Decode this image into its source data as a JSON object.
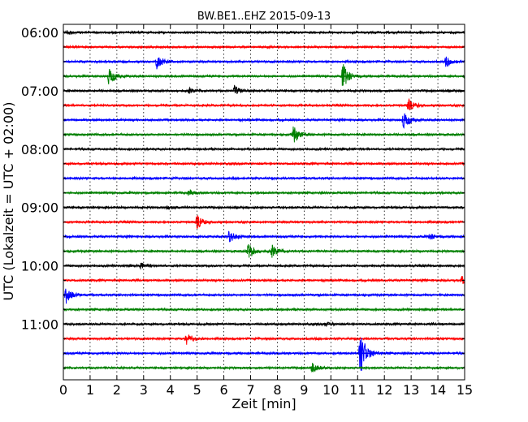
{
  "chart_data": {
    "type": "line",
    "title": "BW.BE1..EHZ 2015-09-13",
    "xlabel": "Zeit  [min]",
    "ylabel": "UTC (Lokalzeit = UTC + 02:00)",
    "xlim": [
      0,
      15
    ],
    "x_ticks": [
      "0",
      "1",
      "2",
      "3",
      "4",
      "5",
      "6",
      "7",
      "8",
      "9",
      "10",
      "11",
      "12",
      "13",
      "14",
      "15"
    ],
    "y_tick_labels": [
      "06:00",
      "07:00",
      "08:00",
      "09:00",
      "10:00",
      "11:00"
    ],
    "trace_interval_min": 15,
    "start_time": "06:00",
    "end_time": "11:45",
    "grid": "vertical dotted lines at each minute",
    "trace_colors": [
      "#000000",
      "#ff0000",
      "#0000ff",
      "#008000"
    ],
    "series": [
      {
        "start": "06:00",
        "color": "black",
        "events": [
          {
            "t": 0.15,
            "amp": 0.2
          }
        ]
      },
      {
        "start": "06:15",
        "color": "red",
        "events": []
      },
      {
        "start": "06:30",
        "color": "blue",
        "events": [
          {
            "t": 3.5,
            "amp": 0.75
          },
          {
            "t": 14.3,
            "amp": 0.5
          }
        ]
      },
      {
        "start": "06:45",
        "color": "green",
        "events": [
          {
            "t": 1.7,
            "amp": 0.9
          },
          {
            "t": 10.45,
            "amp": 1.3
          }
        ]
      },
      {
        "start": "07:00",
        "color": "black",
        "events": [
          {
            "t": 4.7,
            "amp": 0.25
          },
          {
            "t": 6.4,
            "amp": 0.5
          }
        ]
      },
      {
        "start": "07:15",
        "color": "red",
        "events": [
          {
            "t": 12.9,
            "amp": 0.6
          }
        ]
      },
      {
        "start": "07:30",
        "color": "blue",
        "events": [
          {
            "t": 12.7,
            "amp": 1.0
          }
        ]
      },
      {
        "start": "07:45",
        "color": "green",
        "events": [
          {
            "t": 8.6,
            "amp": 0.9
          }
        ]
      },
      {
        "start": "08:00",
        "color": "black",
        "events": []
      },
      {
        "start": "08:15",
        "color": "red",
        "events": []
      },
      {
        "start": "08:30",
        "color": "blue",
        "events": []
      },
      {
        "start": "08:45",
        "color": "green",
        "events": [
          {
            "t": 4.7,
            "amp": 0.25
          }
        ]
      },
      {
        "start": "09:00",
        "color": "black",
        "events": [
          {
            "t": 3.9,
            "amp": 0.2
          }
        ]
      },
      {
        "start": "09:15",
        "color": "red",
        "events": [
          {
            "t": 5.0,
            "amp": 0.7
          }
        ]
      },
      {
        "start": "09:30",
        "color": "blue",
        "events": [
          {
            "t": 6.2,
            "amp": 0.7
          },
          {
            "t": 13.7,
            "amp": 0.3
          }
        ]
      },
      {
        "start": "09:45",
        "color": "green",
        "events": [
          {
            "t": 6.9,
            "amp": 1.0
          },
          {
            "t": 7.8,
            "amp": 0.6
          }
        ]
      },
      {
        "start": "10:00",
        "color": "black",
        "events": [
          {
            "t": 2.9,
            "amp": 0.25
          }
        ]
      },
      {
        "start": "10:15",
        "color": "red",
        "events": [
          {
            "t": 14.9,
            "amp": 0.4
          }
        ]
      },
      {
        "start": "10:30",
        "color": "blue",
        "events": [
          {
            "t": 0.1,
            "amp": 0.85
          }
        ]
      },
      {
        "start": "10:45",
        "color": "green",
        "events": []
      },
      {
        "start": "11:00",
        "color": "black",
        "events": [
          {
            "t": 9.8,
            "amp": 0.2
          }
        ]
      },
      {
        "start": "11:15",
        "color": "red",
        "events": [
          {
            "t": 4.6,
            "amp": 0.7
          }
        ]
      },
      {
        "start": "11:30",
        "color": "blue",
        "events": [
          {
            "t": 11.1,
            "amp": 2.5
          }
        ]
      },
      {
        "start": "11:45",
        "color": "green",
        "events": [
          {
            "t": 9.3,
            "amp": 0.5
          }
        ]
      }
    ]
  }
}
